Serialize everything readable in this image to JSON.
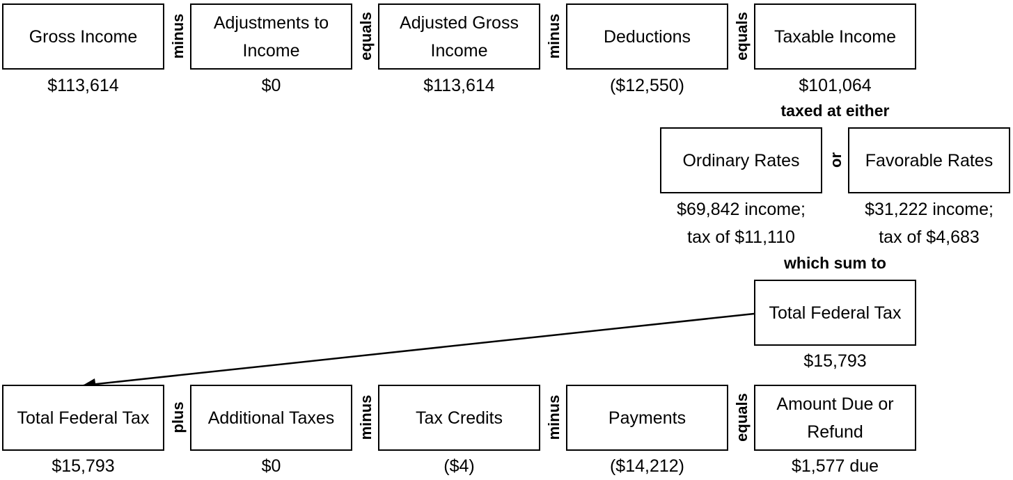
{
  "top_row": [
    {
      "label": "Gross Income",
      "value": "$113,614"
    },
    {
      "label": "Adjustments to Income",
      "value": "$0"
    },
    {
      "label": "Adjusted Gross Income",
      "value": "$113,614"
    },
    {
      "label": "Deductions",
      "value": "($12,550)"
    },
    {
      "label": "Taxable Income",
      "value": "$101,064"
    }
  ],
  "top_ops": [
    "minus",
    "equals",
    "minus",
    "equals"
  ],
  "taxed_note": "taxed at either",
  "rates": {
    "ordinary": {
      "label": "Ordinary Rates",
      "value_line1": "$69,842 income;",
      "value_line2": "tax of $11,110"
    },
    "or_label": "or",
    "favorable": {
      "label": "Favorable Rates",
      "value_line1": "$31,222 income;",
      "value_line2": "tax of $4,683"
    }
  },
  "sum_note": "which sum to",
  "total_tax": {
    "label": "Total Federal Tax",
    "value": "$15,793"
  },
  "bottom_row": [
    {
      "label": "Total Federal Tax",
      "value": "$15,793"
    },
    {
      "label": "Additional Taxes",
      "value": "$0"
    },
    {
      "label": "Tax Credits",
      "value": "($4)"
    },
    {
      "label": "Payments",
      "value": "($14,212)"
    },
    {
      "label": "Amount Due or Refund",
      "value": "$1,577 due"
    }
  ],
  "bottom_ops": [
    "plus",
    "minus",
    "minus",
    "equals"
  ]
}
